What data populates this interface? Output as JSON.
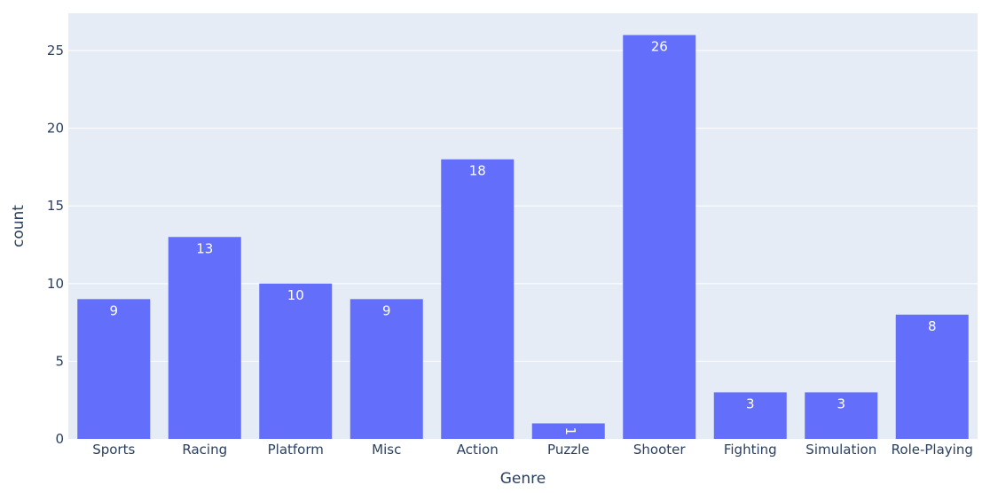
{
  "chart_data": {
    "type": "bar",
    "categories": [
      "Sports",
      "Racing",
      "Platform",
      "Misc",
      "Action",
      "Puzzle",
      "Shooter",
      "Fighting",
      "Simulation",
      "Role-Playing"
    ],
    "values": [
      9,
      13,
      10,
      9,
      18,
      1,
      26,
      3,
      3,
      8
    ],
    "xlabel": "Genre",
    "ylabel": "count",
    "ylim": [
      0,
      27.4
    ],
    "yticks": [
      0,
      5,
      10,
      15,
      20,
      25
    ],
    "grid": true,
    "colors": {
      "bar": "#636efa",
      "plot_bg": "#e5ecf6",
      "gridline": "#ffffff",
      "text": "#2a3f5f",
      "bar_label": "#ffffff"
    }
  }
}
